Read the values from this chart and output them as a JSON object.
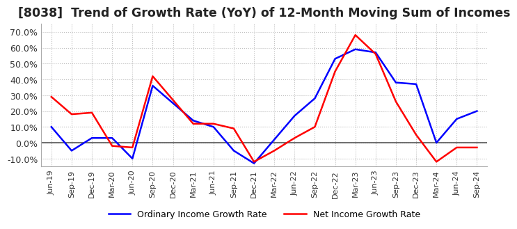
{
  "title": "[8038]  Trend of Growth Rate (YoY) of 12-Month Moving Sum of Incomes",
  "title_fontsize": 12.5,
  "ylim": [
    -15,
    75
  ],
  "yticks": [
    -10.0,
    0.0,
    10.0,
    20.0,
    30.0,
    40.0,
    50.0,
    60.0,
    70.0
  ],
  "background_color": "#ffffff",
  "grid_color": "#bbbbbb",
  "ordinary_color": "#0000ff",
  "net_color": "#ff0000",
  "ordinary_label": "Ordinary Income Growth Rate",
  "net_label": "Net Income Growth Rate",
  "x_labels": [
    "Jun-19",
    "Sep-19",
    "Dec-19",
    "Mar-20",
    "Jun-20",
    "Sep-20",
    "Dec-20",
    "Mar-21",
    "Jun-21",
    "Sep-21",
    "Dec-21",
    "Mar-22",
    "Jun-22",
    "Sep-22",
    "Dec-22",
    "Mar-23",
    "Jun-23",
    "Sep-23",
    "Dec-23",
    "Mar-24",
    "Jun-24",
    "Sep-24"
  ],
  "ordinary_values": [
    10.0,
    -5.0,
    3.0,
    3.0,
    -10.0,
    36.0,
    25.0,
    14.0,
    10.0,
    -5.0,
    -13.0,
    2.0,
    17.0,
    28.0,
    53.0,
    59.0,
    57.0,
    38.0,
    37.0,
    0.0,
    15.0,
    20.0
  ],
  "net_values": [
    29.0,
    18.0,
    19.0,
    -2.0,
    -3.0,
    42.0,
    27.0,
    12.0,
    12.0,
    9.0,
    -12.0,
    -5.0,
    3.0,
    10.0,
    45.0,
    68.0,
    56.0,
    26.0,
    5.0,
    -12.0,
    -3.0,
    -3.0
  ]
}
